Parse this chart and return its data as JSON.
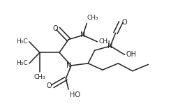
{
  "bg_color": "#ffffff",
  "line_color": "#222222",
  "line_width": 1.1,
  "font_size": 7.0,
  "xlim": [
    0,
    1.3
  ],
  "ylim": [
    0.05,
    1.0
  ]
}
